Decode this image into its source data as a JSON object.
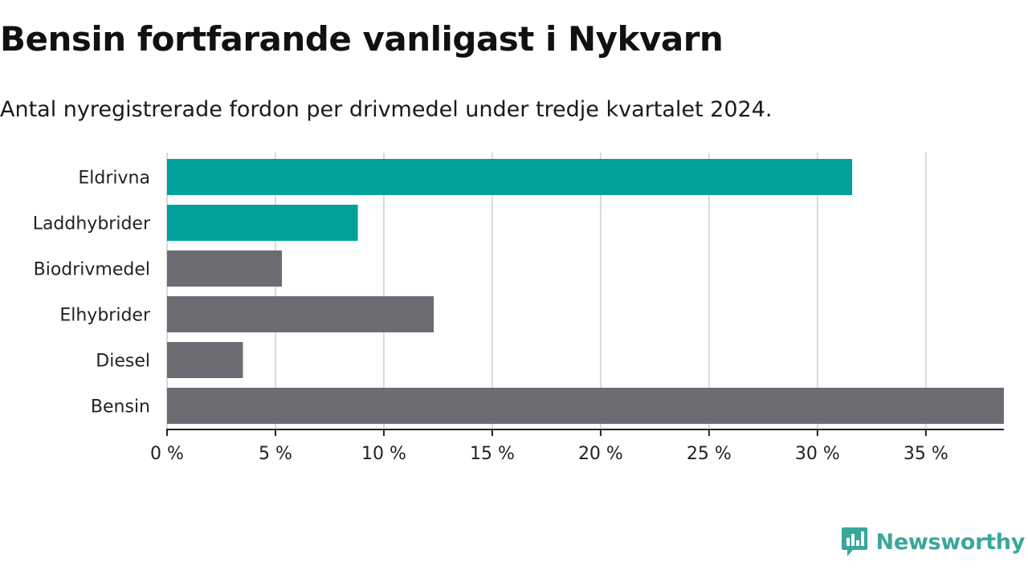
{
  "header": {
    "title": "Bensin fortfarande vanligast i Nykvarn",
    "subtitle": "Antal nyregistrerade fordon per drivmedel under tredje kvartalet 2024."
  },
  "brand": {
    "name": "Newsworthy",
    "color": "#3aa79b",
    "icon": "chart-bubble-icon"
  },
  "colors": {
    "highlight": "#00a19a",
    "default": "#6d6c73",
    "grid": "#d9d9d9",
    "axis": "#222222"
  },
  "chart_data": {
    "type": "bar",
    "orientation": "horizontal",
    "categories": [
      "Eldrivna",
      "Laddhybrider",
      "Biodrivmedel",
      "Elhybrider",
      "Diesel",
      "Bensin"
    ],
    "values": [
      31.6,
      8.8,
      5.3,
      12.3,
      3.5,
      38.6
    ],
    "highlighted": [
      true,
      true,
      false,
      false,
      false,
      false
    ],
    "xticks": [
      0,
      5,
      10,
      15,
      20,
      25,
      30,
      35
    ],
    "tick_suffix": " %",
    "xlim": [
      0,
      38.6
    ],
    "grid": true
  }
}
